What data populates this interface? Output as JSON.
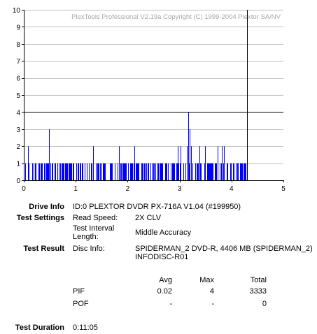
{
  "chart_data": {
    "type": "bar",
    "watermark": "PlexTools Professional V2.19a Copyright (C) 1999-2004 Plextor SA/NV",
    "xlim": [
      0,
      5
    ],
    "ylim": [
      0,
      10
    ],
    "x_ticks": [
      "0",
      "1",
      "2",
      "3",
      "4",
      "5"
    ],
    "y_ticks": [
      "0",
      "1",
      "2",
      "3",
      "4",
      "5",
      "6",
      "7",
      "8",
      "9",
      "10"
    ],
    "grid": true,
    "threshold_y": 4,
    "end_marker_x": 4.3,
    "data_end_x": 4.3,
    "baseline_value": 1,
    "baseline_density": 0.55,
    "spikes": [
      {
        "x": 0.08,
        "y": 2
      },
      {
        "x": 0.48,
        "y": 3
      },
      {
        "x": 1.33,
        "y": 2
      },
      {
        "x": 1.83,
        "y": 2
      },
      {
        "x": 2.13,
        "y": 2
      },
      {
        "x": 2.96,
        "y": 2
      },
      {
        "x": 3.02,
        "y": 2
      },
      {
        "x": 3.14,
        "y": 2
      },
      {
        "x": 3.17,
        "y": 4
      },
      {
        "x": 3.19,
        "y": 3
      },
      {
        "x": 3.22,
        "y": 2
      },
      {
        "x": 3.38,
        "y": 2
      },
      {
        "x": 3.49,
        "y": 2
      },
      {
        "x": 3.73,
        "y": 2
      },
      {
        "x": 3.81,
        "y": 2
      },
      {
        "x": 3.86,
        "y": 2
      }
    ]
  },
  "info": {
    "drive_label": "Drive Info",
    "drive_value": "ID:0 PLEXTOR DVDR PX-716A V1.04 (#199950)",
    "settings_label": "Test Settings",
    "read_speed_label": "Read Speed:",
    "read_speed_value": "2X CLV",
    "interval_label_1": "Test Interval",
    "interval_label_2": "Length:",
    "interval_value": "Middle Accuracy",
    "result_label": "Test Result",
    "disc_info_label": "Disc Info:",
    "disc_info_line1": "SPIDERMAN_2 DVD-R, 4406 MB (SPIDERMAN_2)",
    "disc_info_line2": "INFODISC-R01",
    "duration_label": "Test Duration",
    "duration_value": "0:11:05"
  },
  "stats": {
    "headers": [
      "Avg",
      "Max",
      "Total"
    ],
    "rows": [
      {
        "name": "PIF",
        "avg": "0.02",
        "max": "4",
        "total": "3333"
      },
      {
        "name": "POF",
        "avg": "-",
        "max": "-",
        "total": "0"
      }
    ]
  }
}
